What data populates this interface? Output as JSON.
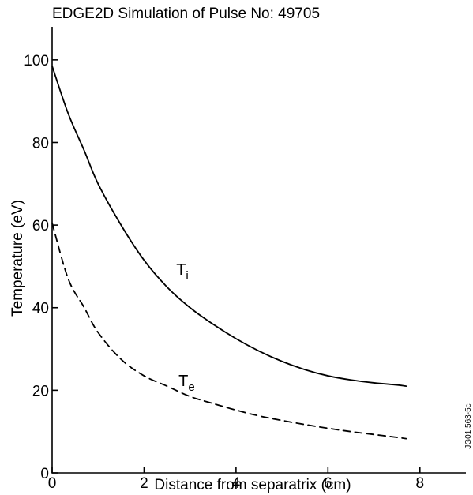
{
  "chart_data": {
    "type": "line",
    "title": "EDGE2D Simulation of Pulse No: 49705",
    "xlabel": "Distance from separatrix (cm)",
    "ylabel": "Temperature (eV)",
    "xlim": [
      0,
      9
    ],
    "ylim": [
      0,
      108
    ],
    "xticks": [
      0,
      2,
      4,
      6,
      8
    ],
    "yticks": [
      0,
      20,
      40,
      60,
      80,
      100
    ],
    "grid": false,
    "legend": "none",
    "series": [
      {
        "label_main": "T",
        "label_sub": "i",
        "line_style": "solid",
        "color": "#000000",
        "label_at": [
          2.7,
          48
        ],
        "x": [
          0,
          0.35,
          0.7,
          1.0,
          1.5,
          2.0,
          2.5,
          3.0,
          3.5,
          4.0,
          4.5,
          5.0,
          5.5,
          6.0,
          6.5,
          7.0,
          7.5,
          7.7
        ],
        "values": [
          98.5,
          87,
          78,
          70,
          60,
          51.5,
          45,
          40,
          36,
          32.5,
          29.5,
          27,
          25,
          23.5,
          22.5,
          21.8,
          21.3,
          21
        ]
      },
      {
        "label_main": "T",
        "label_sub": "e",
        "line_style": "dashed",
        "color": "#000000",
        "label_at": [
          2.75,
          21
        ],
        "x": [
          0,
          0.35,
          0.7,
          1.0,
          1.5,
          2.0,
          2.5,
          3.0,
          3.5,
          4.0,
          4.5,
          5.0,
          5.5,
          6.0,
          6.5,
          7.0,
          7.5,
          7.7
        ],
        "values": [
          60.5,
          47,
          40,
          34,
          27.5,
          23.5,
          21,
          18.5,
          16.8,
          15.2,
          13.8,
          12.7,
          11.7,
          10.8,
          10.0,
          9.3,
          8.6,
          8.3
        ]
      }
    ],
    "side_reference": "JG01.563-5c"
  }
}
